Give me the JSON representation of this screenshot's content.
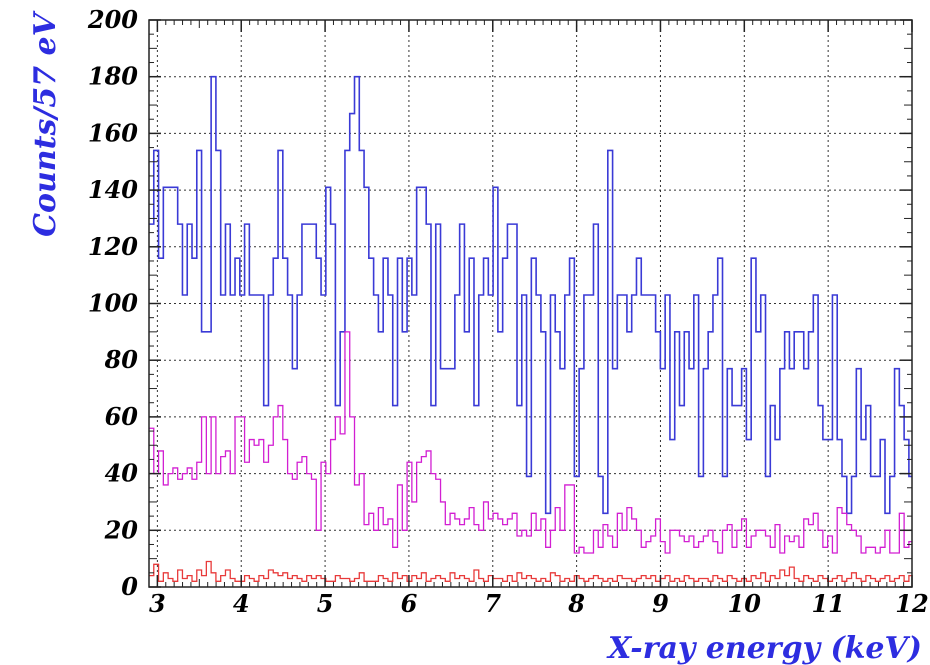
{
  "chart_data": {
    "type": "line",
    "xlabel": "X-ray energy (keV)",
    "ylabel": "Counts/57 eV",
    "xlim": [
      2.9,
      12
    ],
    "ylim": [
      0,
      200
    ],
    "x_ticks": [
      3,
      4,
      5,
      6,
      7,
      8,
      9,
      10,
      11,
      12
    ],
    "y_ticks": [
      0,
      20,
      40,
      60,
      80,
      100,
      120,
      140,
      160,
      180,
      200
    ],
    "grid": true,
    "bin_width": 0.057,
    "x_start": 2.9,
    "colors": {
      "label": "#2d2de0",
      "series_1": "#3a3ad6",
      "series_2": "#d21fd2",
      "series_3": "#e83a3a",
      "grid": "#333333"
    },
    "series": [
      {
        "values": [
          128,
          154,
          116,
          141,
          141,
          141,
          128,
          103,
          128,
          116,
          154,
          90,
          90,
          180,
          154,
          103,
          128,
          103,
          116,
          103,
          128,
          103,
          103,
          103,
          64,
          103,
          116,
          154,
          116,
          103,
          77,
          103,
          128,
          128,
          128,
          116,
          103,
          141,
          128,
          64,
          90,
          154,
          167,
          180,
          154,
          141,
          116,
          103,
          90,
          116,
          103,
          64,
          116,
          90,
          116,
          103,
          141,
          141,
          128,
          64,
          128,
          77,
          77,
          77,
          103,
          128,
          90,
          116,
          64,
          103,
          116,
          103,
          141,
          90,
          116,
          128,
          128,
          64,
          103,
          39,
          116,
          103,
          90,
          26,
          103,
          90,
          77,
          103,
          116,
          39,
          77,
          103,
          103,
          128,
          39,
          26,
          154,
          77,
          103,
          103,
          90,
          103,
          116,
          103,
          103,
          103,
          90,
          77,
          103,
          52,
          90,
          64,
          90,
          77,
          103,
          39,
          77,
          90,
          103,
          116,
          39,
          77,
          64,
          64,
          77,
          52,
          116,
          90,
          103,
          39,
          64,
          52,
          77,
          90,
          77,
          90,
          90,
          77,
          90,
          103,
          64,
          52,
          52,
          103,
          52,
          39,
          26,
          39,
          77,
          52,
          64,
          39,
          39,
          52,
          26,
          39,
          77,
          64,
          52,
          39
        ]
      },
      {
        "values": [
          56,
          40,
          48,
          36,
          40,
          42,
          38,
          40,
          42,
          38,
          44,
          60,
          40,
          60,
          40,
          46,
          48,
          40,
          60,
          60,
          44,
          52,
          50,
          52,
          44,
          50,
          60,
          64,
          52,
          40,
          38,
          44,
          46,
          40,
          38,
          20,
          44,
          40,
          52,
          60,
          54,
          90,
          60,
          36,
          40,
          22,
          26,
          20,
          28,
          22,
          24,
          14,
          36,
          20,
          44,
          30,
          44,
          46,
          48,
          40,
          38,
          30,
          22,
          26,
          24,
          22,
          24,
          28,
          22,
          20,
          30,
          24,
          26,
          24,
          22,
          24,
          26,
          18,
          20,
          18,
          26,
          20,
          24,
          14,
          20,
          28,
          20,
          36,
          36,
          12,
          14,
          12,
          12,
          20,
          14,
          22,
          18,
          14,
          26,
          20,
          28,
          24,
          20,
          14,
          16,
          18,
          24,
          16,
          12,
          20,
          20,
          18,
          16,
          18,
          14,
          16,
          18,
          20,
          16,
          12,
          20,
          22,
          14,
          20,
          24,
          14,
          18,
          20,
          20,
          18,
          14,
          22,
          12,
          18,
          16,
          18,
          14,
          24,
          22,
          26,
          20,
          14,
          18,
          12,
          28,
          26,
          22,
          20,
          18,
          12,
          14,
          14,
          12,
          14,
          20,
          12,
          12,
          26,
          14,
          16
        ]
      },
      {
        "values": [
          4,
          8,
          2,
          5,
          3,
          2,
          6,
          3,
          4,
          2,
          6,
          4,
          9,
          5,
          2,
          4,
          6,
          3,
          2,
          2,
          4,
          3,
          2,
          4,
          3,
          6,
          5,
          4,
          5,
          3,
          4,
          3,
          2,
          4,
          3,
          4,
          3,
          2,
          2,
          4,
          3,
          3,
          2,
          3,
          5,
          2,
          2,
          2,
          4,
          3,
          2,
          5,
          3,
          4,
          2,
          4,
          3,
          5,
          2,
          3,
          4,
          3,
          2,
          5,
          3,
          4,
          3,
          2,
          6,
          3,
          2,
          4,
          3,
          3,
          2,
          4,
          2,
          5,
          3,
          4,
          3,
          2,
          3,
          2,
          5,
          4,
          2,
          3,
          2,
          4,
          3,
          2,
          3,
          4,
          3,
          2,
          3,
          2,
          4,
          3,
          3,
          2,
          3,
          4,
          3,
          4,
          2,
          3,
          4,
          2,
          3,
          2,
          4,
          3,
          2,
          3,
          3,
          2,
          4,
          3,
          2,
          4,
          3,
          2,
          3,
          2,
          4,
          3,
          5,
          2,
          4,
          3,
          6,
          4,
          7,
          3,
          2,
          4,
          3,
          2,
          4,
          3,
          2,
          3,
          4,
          2,
          3,
          5,
          3,
          2,
          4,
          3,
          2,
          3,
          4,
          2,
          3,
          4,
          2,
          4
        ]
      }
    ]
  }
}
